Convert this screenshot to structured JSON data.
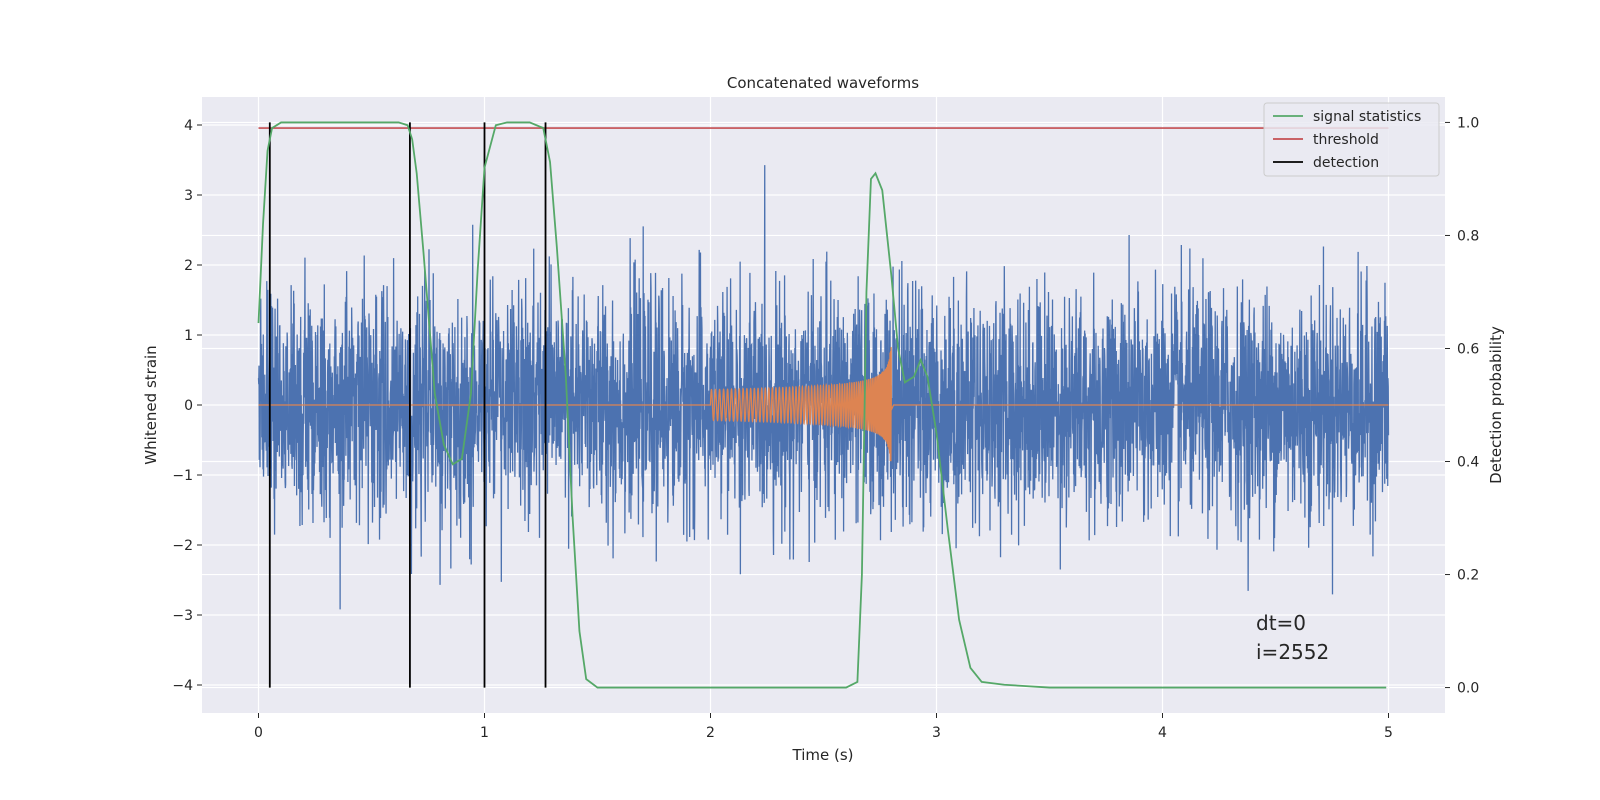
{
  "chart_data": {
    "type": "line",
    "title": "Concatenated waveforms",
    "xlabel": "Time (s)",
    "ylabel": "Whitened strain",
    "y2label": "Detection probability",
    "xlim": [
      -0.25,
      5.25
    ],
    "ylim": [
      -4.4,
      4.4
    ],
    "y2lim": [
      -0.045,
      1.045
    ],
    "xticks": [
      0,
      1,
      2,
      3,
      4,
      5
    ],
    "yticks": [
      -4,
      -3,
      -2,
      -1,
      0,
      1,
      2,
      3,
      4
    ],
    "y2ticks": [
      0.0,
      0.2,
      0.4,
      0.6,
      0.8,
      1.0
    ],
    "y2ticklabels": [
      "0.0",
      "0.2",
      "0.4",
      "0.6",
      "0.8",
      "1.0"
    ],
    "grid": true,
    "legend_position": "top-right",
    "legend": [
      {
        "name": "signal statistics",
        "color": "#55a868"
      },
      {
        "name": "threshold",
        "color": "#c44e52"
      },
      {
        "name": "detection",
        "color": "#000000"
      }
    ],
    "strain_color": "#4c72b0",
    "strain_range": [
      0,
      5
    ],
    "strain_noise_sigma": 0.8,
    "chirp_color": "#dd8452",
    "chirp_range": [
      2.0,
      2.8
    ],
    "chirp_peak_amplitude": 1.05,
    "threshold": 0.99,
    "detections": [
      0.05,
      0.67,
      1.0,
      1.27
    ],
    "signal_statistics": {
      "x": [
        0,
        0.02,
        0.04,
        0.06,
        0.1,
        0.15,
        0.3,
        0.5,
        0.62,
        0.66,
        0.68,
        0.7,
        0.73,
        0.78,
        0.82,
        0.86,
        0.9,
        0.94,
        0.97,
        1.0,
        1.05,
        1.1,
        1.2,
        1.26,
        1.29,
        1.32,
        1.36,
        1.39,
        1.42,
        1.45,
        1.5,
        2.0,
        2.6,
        2.65,
        2.67,
        2.69,
        2.71,
        2.73,
        2.76,
        2.8,
        2.83,
        2.86,
        2.9,
        2.93,
        2.96,
        3.0,
        3.05,
        3.1,
        3.15,
        3.2,
        3.3,
        3.5,
        4.0,
        4.99
      ],
      "y": [
        0.645,
        0.82,
        0.95,
        0.99,
        1.0,
        1.0,
        1.0,
        1.0,
        1.0,
        0.995,
        0.97,
        0.91,
        0.77,
        0.52,
        0.43,
        0.395,
        0.405,
        0.52,
        0.74,
        0.92,
        0.995,
        1.0,
        1.0,
        0.99,
        0.93,
        0.78,
        0.55,
        0.3,
        0.1,
        0.015,
        0.0,
        0.0,
        0.0,
        0.01,
        0.2,
        0.7,
        0.9,
        0.91,
        0.88,
        0.73,
        0.6,
        0.54,
        0.55,
        0.58,
        0.55,
        0.45,
        0.28,
        0.12,
        0.035,
        0.01,
        0.005,
        0.0,
        0.0,
        0.0
      ]
    },
    "annotations": [
      "dt=0",
      "i=2552"
    ]
  }
}
